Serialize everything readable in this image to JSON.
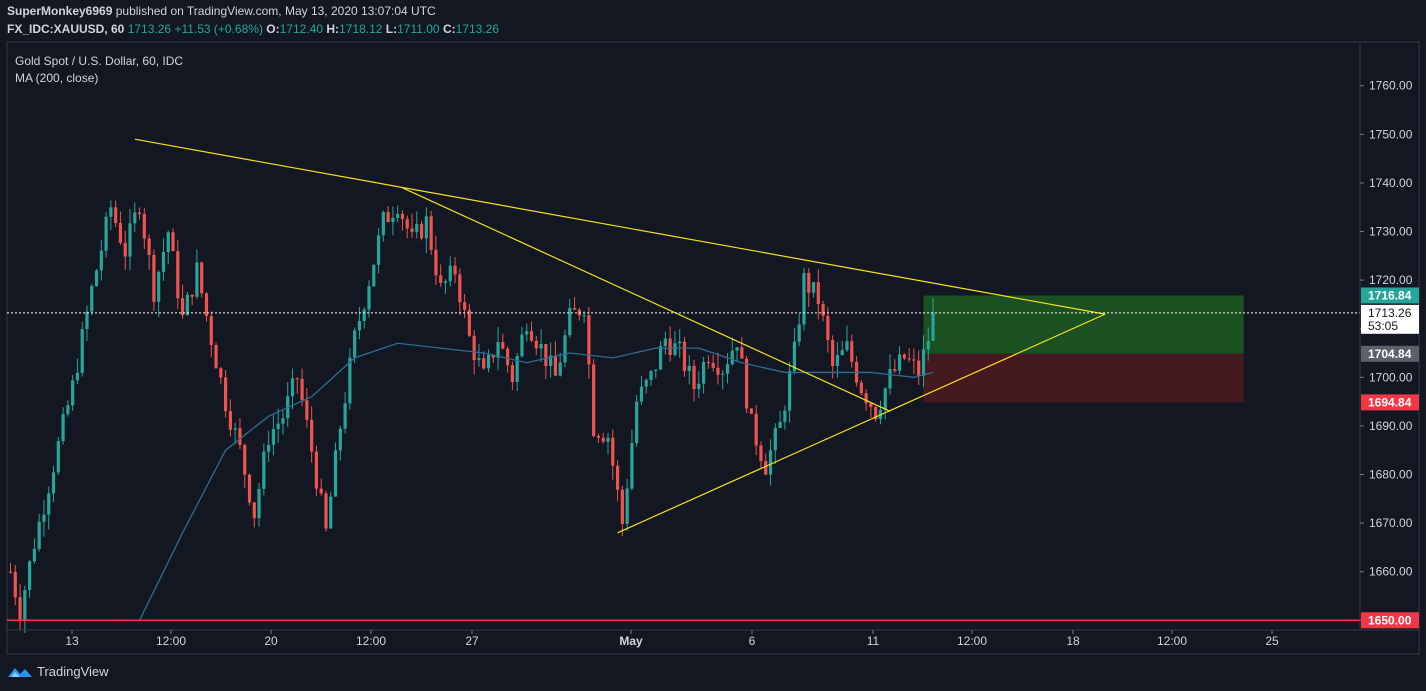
{
  "header": {
    "author": "SuperMonkey6969",
    "published": "published on TradingView.com, May 13, 2020 13:07:04 UTC",
    "symbol": "FX_IDC:XAUUSD, 60",
    "last": "1713.26",
    "change": "+11.53 (+0.68%)",
    "open_label": "O:",
    "open": "1712.40",
    "high_label": "H:",
    "high": "1718.12",
    "low_label": "L:",
    "low": "1711.00",
    "close_label": "C:",
    "close": "1713.26"
  },
  "legend": {
    "title": "Gold Spot / U.S. Dollar, 60, IDC",
    "indicator": "MA (200, close)"
  },
  "footer": {
    "brand": "TradingView"
  },
  "colors": {
    "background": "#131722",
    "up": "#26a69a",
    "down": "#ef5350",
    "ma": "#2e6c94",
    "trendline": "#f5e31b",
    "target_zone": "#1d5a21",
    "stop_zone": "#4a1a1f",
    "price_label": "#26a69a",
    "stop_label": "#f23645"
  },
  "chart_data": {
    "type": "candlestick",
    "y_ticks": [
      1650,
      1660,
      1670,
      1680,
      1690,
      1700,
      1710,
      1720,
      1730,
      1740,
      1750,
      1760
    ],
    "y_tick_labels": [
      "1650.00",
      "1660.00",
      "1670.00",
      "1680.00",
      "1690.00",
      "1700.00",
      "1710.00",
      "1720.00",
      "1730.00",
      "1740.00",
      "1750.00",
      "1760.00"
    ],
    "ylim": [
      1648,
      1769
    ],
    "x_ticks": [
      "13",
      "12:00",
      "20",
      "12:00",
      "27",
      "May",
      "6",
      "11",
      "12:00",
      "18",
      "12:00",
      "25"
    ],
    "price_path": [
      [
        0,
        1660
      ],
      [
        2,
        1652
      ],
      [
        5,
        1666
      ],
      [
        8,
        1678
      ],
      [
        11,
        1690
      ],
      [
        13,
        1698
      ],
      [
        17,
        1718
      ],
      [
        21,
        1735
      ],
      [
        24,
        1726
      ],
      [
        27,
        1736
      ],
      [
        30,
        1718
      ],
      [
        33,
        1730
      ],
      [
        36,
        1712
      ],
      [
        39,
        1722
      ],
      [
        42,
        1708
      ],
      [
        45,
        1695
      ],
      [
        48,
        1685
      ],
      [
        51,
        1672
      ],
      [
        54,
        1688
      ],
      [
        57,
        1692
      ],
      [
        60,
        1700
      ],
      [
        63,
        1685
      ],
      [
        66,
        1668
      ],
      [
        69,
        1690
      ],
      [
        72,
        1708
      ],
      [
        75,
        1720
      ],
      [
        78,
        1732
      ],
      [
        81,
        1736
      ],
      [
        84,
        1728
      ],
      [
        87,
        1732
      ],
      [
        90,
        1718
      ],
      [
        93,
        1722
      ],
      [
        96,
        1708
      ],
      [
        99,
        1700
      ],
      [
        102,
        1708
      ],
      [
        105,
        1700
      ],
      [
        108,
        1712
      ],
      [
        111,
        1706
      ],
      [
        114,
        1700
      ],
      [
        117,
        1712
      ],
      [
        120,
        1715
      ],
      [
        122,
        1690
      ],
      [
        125,
        1688
      ],
      [
        128,
        1670
      ],
      [
        131,
        1695
      ],
      [
        134,
        1700
      ],
      [
        137,
        1708
      ],
      [
        140,
        1705
      ],
      [
        143,
        1698
      ],
      [
        146,
        1705
      ],
      [
        149,
        1702
      ],
      [
        152,
        1708
      ],
      [
        155,
        1690
      ],
      [
        158,
        1682
      ],
      [
        161,
        1690
      ],
      [
        164,
        1705
      ],
      [
        166,
        1720
      ],
      [
        169,
        1716
      ],
      [
        172,
        1702
      ],
      [
        175,
        1706
      ],
      [
        178,
        1698
      ],
      [
        181,
        1693
      ],
      [
        184,
        1700
      ],
      [
        187,
        1704
      ],
      [
        190,
        1701
      ],
      [
        192,
        1708
      ],
      [
        193,
        1713.26
      ]
    ],
    "ma_path": [
      [
        27,
        1650
      ],
      [
        36,
        1668
      ],
      [
        45,
        1685
      ],
      [
        54,
        1692
      ],
      [
        63,
        1696
      ],
      [
        72,
        1704
      ],
      [
        81,
        1707
      ],
      [
        90,
        1706
      ],
      [
        99,
        1705
      ],
      [
        108,
        1703
      ],
      [
        117,
        1705
      ],
      [
        126,
        1704
      ],
      [
        135,
        1706
      ],
      [
        144,
        1706
      ],
      [
        153,
        1703
      ],
      [
        162,
        1701
      ],
      [
        171,
        1701
      ],
      [
        180,
        1701
      ],
      [
        189,
        1700
      ],
      [
        193,
        1701
      ]
    ],
    "trendlines": [
      {
        "from": [
          26,
          1749
        ],
        "to": [
          229,
          1713
        ]
      },
      {
        "from": [
          82,
          1739
        ],
        "to": [
          184,
          1693
        ]
      },
      {
        "from": [
          127,
          1668
        ],
        "to": [
          229,
          1713
        ]
      }
    ],
    "position": {
      "entry": 1704.84,
      "target": 1716.84,
      "stop": 1694.84,
      "x_range": [
        191,
        258
      ]
    },
    "price_labels": [
      {
        "value": 1716.84,
        "text": "1716.84",
        "kind": "target"
      },
      {
        "value": 1713.26,
        "text": "1713.26",
        "kind": "last"
      },
      {
        "value": 1710.6,
        "text": "53:05",
        "kind": "timer"
      },
      {
        "value": 1704.84,
        "text": "1704.84",
        "kind": "entry"
      },
      {
        "value": 1694.84,
        "text": "1694.84",
        "kind": "stop"
      },
      {
        "value": 1650,
        "text": "1650.00",
        "kind": "stop"
      }
    ],
    "red_line": 1650
  }
}
